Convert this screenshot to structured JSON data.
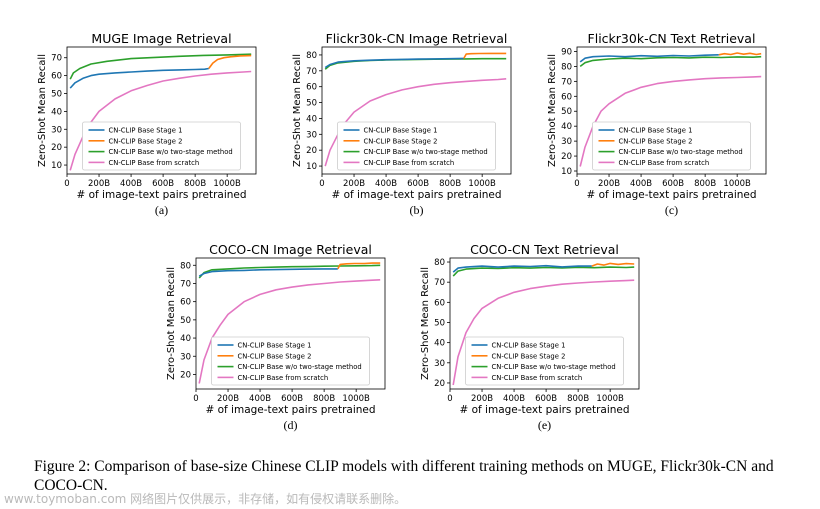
{
  "caption": "Figure 2: Comparison of base-size Chinese CLIP models with different training methods on MUGE, Flickr30k-CN and COCO-CN.",
  "watermark": "www.toymoban.com 网络图片仅供展示，非存储，如有侵权请联系删除。",
  "legend_entries": [
    "CN-CLIP Base Stage 1",
    "CN-CLIP Base Stage 2",
    "CN-CLIP Base w/o two-stage method",
    "CN-CLIP Base from scratch"
  ],
  "series_colors": [
    "#1f77b4",
    "#ff7f0e",
    "#2ca02c",
    "#e377c2"
  ],
  "chart_data": [
    {
      "type": "line",
      "panel_label": "(a)",
      "title": "MUGE Image Retrieval",
      "xlabel": "# of image-text pairs pretrained",
      "ylabel": "Zero-Shot Mean Recall",
      "xlim": [
        0,
        1180
      ],
      "ylim": [
        5,
        76
      ],
      "xticks": [
        0,
        200,
        400,
        600,
        800,
        1000
      ],
      "xtick_labels": [
        "0",
        "200B",
        "400B",
        "600B",
        "800B",
        "1000B"
      ],
      "yticks": [
        10,
        20,
        30,
        40,
        50,
        60,
        70
      ],
      "ytick_labels": [
        "10",
        "20",
        "30",
        "40",
        "50",
        "60",
        "70"
      ],
      "legend_placement": "lower-center",
      "series": [
        {
          "name": "CN-CLIP Base Stage 1",
          "x": [
            20,
            50,
            100,
            150,
            200,
            300,
            400,
            500,
            600,
            700,
            800,
            860,
            885
          ],
          "y": [
            53,
            56,
            58.5,
            60,
            60.8,
            61.5,
            62,
            62.5,
            63,
            63.2,
            63.4,
            63.6,
            64
          ]
        },
        {
          "name": "CN-CLIP Base Stage 2",
          "x": [
            885,
            910,
            940,
            980,
            1020,
            1080,
            1150
          ],
          "y": [
            64,
            67,
            69,
            70,
            70.5,
            71,
            71.2
          ]
        },
        {
          "name": "CN-CLIP Base w/o two-stage method",
          "x": [
            20,
            40,
            80,
            150,
            250,
            400,
            550,
            700,
            850,
            1000,
            1150
          ],
          "y": [
            58,
            61.5,
            64,
            66.5,
            68,
            69.5,
            70.2,
            70.8,
            71.3,
            71.6,
            72
          ]
        },
        {
          "name": "CN-CLIP Base from scratch",
          "x": [
            20,
            50,
            100,
            150,
            200,
            300,
            400,
            500,
            600,
            700,
            800,
            900,
            1000,
            1100,
            1150
          ],
          "y": [
            7,
            16,
            26,
            34,
            40,
            47,
            51.5,
            54.5,
            57,
            58.5,
            59.8,
            60.8,
            61.5,
            62,
            62.3
          ]
        }
      ]
    },
    {
      "type": "line",
      "panel_label": "(b)",
      "title": "Flickr30k-CN Image Retrieval",
      "xlabel": "# of image-text pairs pretrained",
      "ylabel": "Zero-Shot Mean Recall",
      "xlim": [
        0,
        1180
      ],
      "ylim": [
        5,
        85
      ],
      "xticks": [
        0,
        200,
        400,
        600,
        800,
        1000
      ],
      "xtick_labels": [
        "0",
        "200B",
        "400B",
        "600B",
        "800B",
        "1000B"
      ],
      "yticks": [
        10,
        20,
        30,
        40,
        50,
        60,
        70,
        80
      ],
      "ytick_labels": [
        "10",
        "20",
        "30",
        "40",
        "50",
        "60",
        "70",
        "80"
      ],
      "legend_placement": "lower-center",
      "series": [
        {
          "name": "CN-CLIP Base Stage 1",
          "x": [
            20,
            50,
            100,
            200,
            300,
            400,
            500,
            600,
            700,
            800,
            885
          ],
          "y": [
            72,
            74,
            75.5,
            76.3,
            76.7,
            77,
            77.2,
            77.4,
            77.5,
            77.6,
            77.8
          ]
        },
        {
          "name": "CN-CLIP Base Stage 2",
          "x": [
            885,
            900,
            930,
            980,
            1050,
            1150
          ],
          "y": [
            77.8,
            80.5,
            80.8,
            80.9,
            81,
            81
          ]
        },
        {
          "name": "CN-CLIP Base w/o two-stage method",
          "x": [
            20,
            50,
            100,
            200,
            300,
            400,
            500,
            600,
            700,
            800,
            900,
            1000,
            1100,
            1150
          ],
          "y": [
            71,
            73.5,
            75,
            76,
            76.5,
            76.8,
            77,
            77.2,
            77.3,
            77.4,
            77.5,
            77.6,
            77.6,
            77.6
          ]
        },
        {
          "name": "CN-CLIP Base from scratch",
          "x": [
            20,
            50,
            100,
            150,
            200,
            300,
            400,
            500,
            600,
            700,
            800,
            900,
            1000,
            1100,
            1150
          ],
          "y": [
            10,
            20,
            30,
            38,
            44,
            51,
            55,
            58,
            60,
            61.5,
            62.5,
            63.3,
            64,
            64.5,
            65
          ]
        }
      ]
    },
    {
      "type": "line",
      "panel_label": "(c)",
      "title": "Flickr30k-CN Text Retrieval",
      "xlabel": "# of image-text pairs pretrained",
      "ylabel": "Zero-Shot Mean Recall",
      "xlim": [
        0,
        1180
      ],
      "ylim": [
        8,
        93
      ],
      "xticks": [
        0,
        200,
        400,
        600,
        800,
        1000
      ],
      "xtick_labels": [
        "0",
        "200B",
        "400B",
        "600B",
        "800B",
        "1000B"
      ],
      "yticks": [
        10,
        20,
        30,
        40,
        50,
        60,
        70,
        80,
        90
      ],
      "ytick_labels": [
        "10",
        "20",
        "30",
        "40",
        "50",
        "60",
        "70",
        "80",
        "90"
      ],
      "legend_placement": "lower-center",
      "series": [
        {
          "name": "CN-CLIP Base Stage 1",
          "x": [
            20,
            50,
            100,
            200,
            300,
            400,
            500,
            600,
            700,
            800,
            885
          ],
          "y": [
            83,
            85.5,
            86.5,
            87,
            86.5,
            87.2,
            86.8,
            87.3,
            87,
            87.5,
            87.8
          ]
        },
        {
          "name": "CN-CLIP Base Stage 2",
          "x": [
            885,
            920,
            960,
            1000,
            1040,
            1080,
            1120,
            1150
          ],
          "y": [
            87.8,
            88.5,
            88,
            89,
            88.2,
            88.8,
            88,
            88.5
          ]
        },
        {
          "name": "CN-CLIP Base w/o two-stage method",
          "x": [
            20,
            50,
            100,
            200,
            300,
            400,
            500,
            600,
            700,
            800,
            900,
            1000,
            1100,
            1150
          ],
          "y": [
            80,
            82.5,
            84,
            85,
            85.5,
            85.2,
            85.8,
            86,
            85.7,
            86.2,
            86,
            86.4,
            86.2,
            86.5
          ]
        },
        {
          "name": "CN-CLIP Base from scratch",
          "x": [
            20,
            50,
            100,
            150,
            200,
            300,
            400,
            500,
            600,
            700,
            800,
            900,
            1000,
            1100,
            1150
          ],
          "y": [
            13,
            26,
            40,
            50,
            55,
            62,
            66,
            68.5,
            70,
            71,
            71.8,
            72.3,
            72.6,
            73,
            73.2
          ]
        }
      ]
    },
    {
      "type": "line",
      "panel_label": "(d)",
      "title": "COCO-CN Image Retrieval",
      "xlabel": "# of image-text pairs pretrained",
      "ylabel": "Zero-Shot Mean Recall",
      "xlim": [
        0,
        1180
      ],
      "ylim": [
        12,
        84
      ],
      "xticks": [
        0,
        200,
        400,
        600,
        800,
        1000
      ],
      "xtick_labels": [
        "0",
        "200B",
        "400B",
        "600B",
        "800B",
        "1000B"
      ],
      "yticks": [
        20,
        30,
        40,
        50,
        60,
        70,
        80
      ],
      "ytick_labels": [
        "20",
        "30",
        "40",
        "50",
        "60",
        "70",
        "80"
      ],
      "legend_placement": "lower-center",
      "series": [
        {
          "name": "CN-CLIP Base Stage 1",
          "x": [
            20,
            50,
            100,
            200,
            300,
            400,
            500,
            600,
            700,
            800,
            885
          ],
          "y": [
            74,
            75.5,
            76.5,
            77,
            77.2,
            77.5,
            77.6,
            77.8,
            77.9,
            78,
            78
          ]
        },
        {
          "name": "CN-CLIP Base Stage 2",
          "x": [
            885,
            900,
            940,
            990,
            1050,
            1100,
            1150
          ],
          "y": [
            78,
            80.5,
            80.8,
            81,
            81,
            81.2,
            81.2
          ]
        },
        {
          "name": "CN-CLIP Base w/o two-stage method",
          "x": [
            20,
            50,
            100,
            200,
            300,
            400,
            500,
            600,
            700,
            800,
            900,
            1000,
            1100,
            1150
          ],
          "y": [
            73,
            76,
            77.5,
            78,
            78.5,
            78.8,
            79,
            79.2,
            79.3,
            79.5,
            79.6,
            79.7,
            79.8,
            80
          ]
        },
        {
          "name": "CN-CLIP Base from scratch",
          "x": [
            20,
            50,
            100,
            150,
            200,
            300,
            400,
            500,
            600,
            700,
            800,
            900,
            1000,
            1100,
            1150
          ],
          "y": [
            15,
            28,
            40,
            47,
            53,
            60,
            64,
            66.5,
            68,
            69.2,
            70,
            70.8,
            71.3,
            71.8,
            72
          ]
        }
      ]
    },
    {
      "type": "line",
      "panel_label": "(e)",
      "title": "COCO-CN Text Retrieval",
      "xlabel": "# of image-text pairs pretrained",
      "ylabel": "Zero-Shot Mean Recall",
      "xlim": [
        0,
        1180
      ],
      "ylim": [
        17,
        82
      ],
      "xticks": [
        0,
        200,
        400,
        600,
        800,
        1000
      ],
      "xtick_labels": [
        "0",
        "200B",
        "400B",
        "600B",
        "800B",
        "1000B"
      ],
      "yticks": [
        20,
        30,
        40,
        50,
        60,
        70,
        80
      ],
      "ytick_labels": [
        "20",
        "30",
        "40",
        "50",
        "60",
        "70",
        "80"
      ],
      "legend_placement": "lower-center",
      "series": [
        {
          "name": "CN-CLIP Base Stage 1",
          "x": [
            20,
            50,
            100,
            200,
            300,
            400,
            500,
            600,
            700,
            800,
            885
          ],
          "y": [
            75,
            77,
            77.5,
            78,
            77.5,
            78,
            77.8,
            78.2,
            77.6,
            78,
            78
          ]
        },
        {
          "name": "CN-CLIP Base Stage 2",
          "x": [
            885,
            920,
            960,
            1000,
            1050,
            1100,
            1150
          ],
          "y": [
            78,
            79,
            78.5,
            79.3,
            78.8,
            79.2,
            79
          ]
        },
        {
          "name": "CN-CLIP Base w/o two-stage method",
          "x": [
            20,
            50,
            100,
            200,
            300,
            400,
            500,
            600,
            700,
            800,
            900,
            1000,
            1100,
            1150
          ],
          "y": [
            73,
            75.5,
            76.5,
            77,
            76.8,
            77.2,
            77,
            77.3,
            77.1,
            77.4,
            77.2,
            77.5,
            77.3,
            77.5
          ]
        },
        {
          "name": "CN-CLIP Base from scratch",
          "x": [
            20,
            50,
            100,
            150,
            200,
            300,
            400,
            500,
            600,
            700,
            800,
            900,
            1000,
            1100,
            1150
          ],
          "y": [
            19,
            33,
            45,
            52,
            57,
            62,
            65,
            66.8,
            68,
            69,
            69.6,
            70.1,
            70.5,
            70.8,
            71
          ]
        }
      ]
    }
  ]
}
